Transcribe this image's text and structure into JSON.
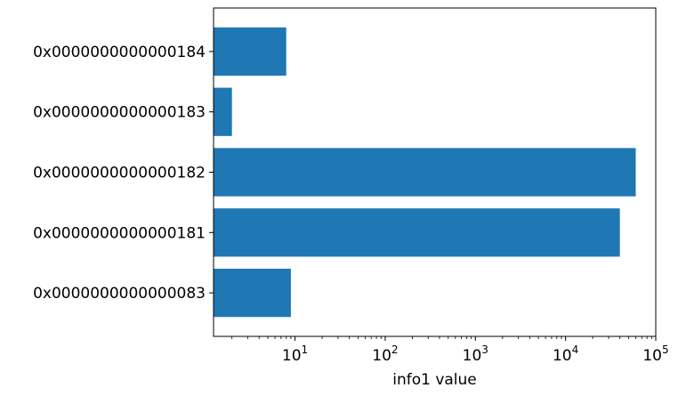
{
  "chart_data": {
    "type": "bar",
    "orientation": "horizontal",
    "title": "",
    "xlabel": "info1 value",
    "ylabel": "",
    "xscale": "log",
    "xlim": [
      1.25,
      100000
    ],
    "x_ticks": [
      {
        "base": "10",
        "exp": "1"
      },
      {
        "base": "10",
        "exp": "2"
      },
      {
        "base": "10",
        "exp": "3"
      },
      {
        "base": "10",
        "exp": "4"
      },
      {
        "base": "10",
        "exp": "5"
      }
    ],
    "categories": [
      "0x0000000000000083",
      "0x0000000000000181",
      "0x0000000000000182",
      "0x0000000000000183",
      "0x0000000000000184"
    ],
    "values": [
      9,
      40000,
      60000,
      2,
      8
    ],
    "bar_color": "#1f77b4",
    "grid": false,
    "legend": "none"
  }
}
